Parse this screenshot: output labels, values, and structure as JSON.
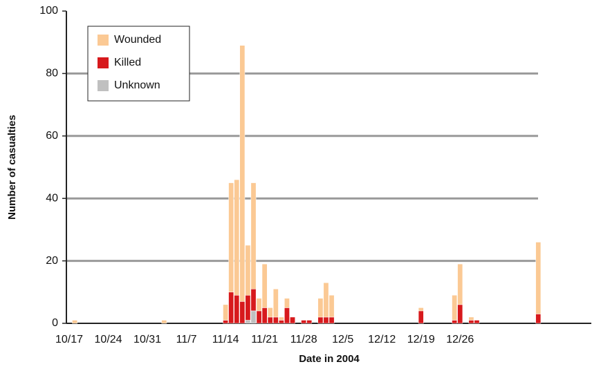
{
  "chart_data": {
    "type": "stacked_bar",
    "y_label": "Number of casualties",
    "x_label": "Date in 2004",
    "categories": [
      "10/17",
      null,
      null,
      null,
      null,
      null,
      null,
      "10/24",
      null,
      null,
      null,
      null,
      null,
      null,
      "10/31",
      null,
      null,
      null,
      null,
      null,
      null,
      "11/7",
      null,
      null,
      null,
      null,
      null,
      null,
      "11/14",
      null,
      null,
      null,
      null,
      null,
      null,
      "11/21",
      null,
      null,
      null,
      null,
      null,
      null,
      "11/28",
      null,
      null,
      null,
      null,
      null,
      null,
      "12/5",
      null,
      null,
      null,
      null,
      null,
      null,
      "12/12",
      null,
      null,
      null,
      null,
      null,
      null,
      "12/19",
      null,
      null,
      null,
      null,
      null,
      null,
      "12/26",
      null,
      null,
      null,
      null,
      null,
      null,
      null,
      null,
      null,
      null,
      null,
      null,
      null,
      null,
      null,
      null,
      null,
      null,
      null,
      null,
      null,
      null,
      null
    ],
    "series": [
      {
        "name": "Wounded",
        "color": "#fbc994",
        "values": [
          0,
          1,
          0,
          0,
          0,
          0,
          0,
          0,
          0,
          0,
          0,
          0,
          0,
          0,
          0,
          0,
          0,
          1,
          0,
          0,
          0,
          0,
          0,
          0,
          0,
          0,
          0,
          0,
          5,
          35,
          37,
          82,
          16,
          34,
          4,
          14,
          3,
          9,
          1,
          3,
          0,
          0,
          0,
          0,
          0,
          6,
          11,
          7,
          0,
          0,
          0,
          0,
          0,
          0,
          0,
          0,
          0,
          0,
          0,
          0,
          0,
          0,
          0,
          1,
          0,
          0,
          0,
          0,
          0,
          8,
          13,
          0,
          1,
          0,
          0,
          0,
          0,
          0,
          0,
          0,
          0,
          0,
          0,
          0,
          23,
          0,
          0,
          0,
          0,
          0,
          0,
          0,
          0,
          0
        ]
      },
      {
        "name": "Killed",
        "color": "#d7191c",
        "values": [
          0,
          0,
          0,
          0,
          0,
          0,
          0,
          0,
          0,
          0,
          0,
          0,
          0,
          0,
          0,
          0,
          0,
          0,
          0,
          0,
          0,
          0,
          0,
          0,
          0,
          0,
          0,
          0,
          1,
          10,
          9,
          7,
          8,
          7,
          4,
          5,
          2,
          2,
          1,
          5,
          2,
          0,
          1,
          1,
          0,
          2,
          2,
          2,
          0,
          0,
          0,
          0,
          0,
          0,
          0,
          0,
          0,
          0,
          0,
          0,
          0,
          0,
          0,
          4,
          0,
          0,
          0,
          0,
          0,
          1,
          6,
          0,
          1,
          1,
          0,
          0,
          0,
          0,
          0,
          0,
          0,
          0,
          0,
          0,
          3,
          0,
          0,
          0,
          0,
          0,
          0,
          0,
          0,
          0
        ]
      },
      {
        "name": "Unknown",
        "color": "#c0c0c0",
        "values": [
          0,
          0,
          0,
          0,
          0,
          0,
          0,
          0,
          0,
          0,
          0,
          0,
          0,
          0,
          0,
          0,
          0,
          0,
          0,
          0,
          0,
          0,
          0,
          0,
          0,
          0,
          0,
          0,
          0,
          0,
          0,
          0,
          1,
          4,
          0,
          0,
          0,
          0,
          0,
          0,
          0,
          0,
          0,
          0,
          0,
          0,
          0,
          0,
          0,
          0,
          0,
          0,
          0,
          0,
          0,
          0,
          0,
          0,
          0,
          0,
          0,
          0,
          0,
          0,
          0,
          0,
          0,
          0,
          0,
          0,
          0,
          0,
          0,
          0,
          0,
          0,
          0,
          0,
          0,
          0,
          0,
          0,
          0,
          0,
          0,
          0,
          0,
          0,
          0,
          0,
          0,
          0,
          0,
          0
        ]
      }
    ],
    "ylim": [
      0,
      100
    ],
    "yticks": [
      0,
      20,
      40,
      60,
      80,
      100
    ],
    "grid": true,
    "legend": "upper left"
  }
}
